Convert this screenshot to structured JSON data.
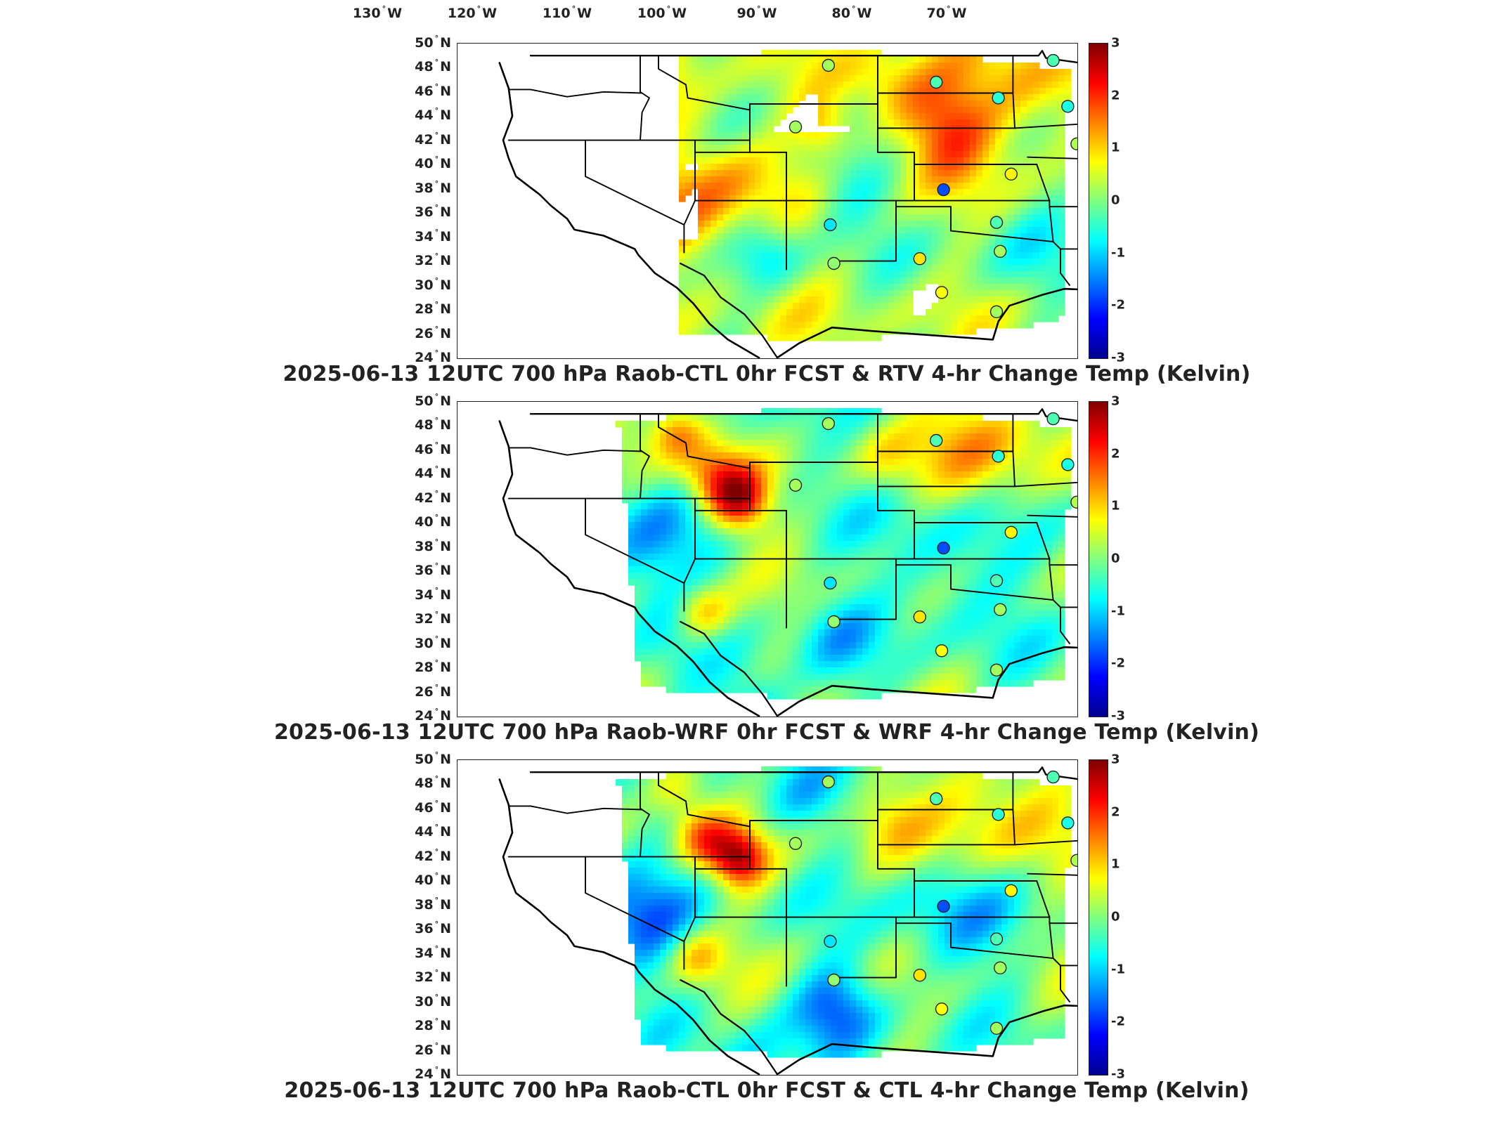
{
  "lon_labels": [
    {
      "deg": "130",
      "hemi": "W"
    },
    {
      "deg": "120",
      "hemi": "W"
    },
    {
      "deg": "110",
      "hemi": "W"
    },
    {
      "deg": "100",
      "hemi": "W"
    },
    {
      "deg": "90",
      "hemi": "W"
    },
    {
      "deg": "80",
      "hemi": "W"
    },
    {
      "deg": "70",
      "hemi": "W"
    }
  ],
  "lat_labels": [
    {
      "deg": "50",
      "hemi": "N"
    },
    {
      "deg": "48",
      "hemi": "N"
    },
    {
      "deg": "46",
      "hemi": "N"
    },
    {
      "deg": "44",
      "hemi": "N"
    },
    {
      "deg": "42",
      "hemi": "N"
    },
    {
      "deg": "40",
      "hemi": "N"
    },
    {
      "deg": "38",
      "hemi": "N"
    },
    {
      "deg": "36",
      "hemi": "N"
    },
    {
      "deg": "34",
      "hemi": "N"
    },
    {
      "deg": "32",
      "hemi": "N"
    },
    {
      "deg": "30",
      "hemi": "N"
    },
    {
      "deg": "28",
      "hemi": "N"
    },
    {
      "deg": "26",
      "hemi": "N"
    },
    {
      "deg": "24",
      "hemi": "N"
    }
  ],
  "colorbar": {
    "ticks": [
      "3",
      "2",
      "1",
      "0",
      "-1",
      "-2",
      "-3"
    ],
    "range": [
      -3,
      3
    ],
    "colormap": "jet",
    "colors": [
      "#00008f",
      "#0000ff",
      "#0080ff",
      "#00ffff",
      "#80ff80",
      "#ffff00",
      "#ff8000",
      "#ff0000",
      "#800000"
    ]
  },
  "panels": [
    {
      "title": "2025-06-13 12UTC 700 hPa Raob-CTL 0hr FCST & RTV 4-hr Change Temp (Kelvin)",
      "field": "rtv"
    },
    {
      "title": "2025-06-13 12UTC 700 hPa Raob-WRF 0hr FCST & WRF 4-hr Change Temp (Kelvin)",
      "field": "wrf"
    },
    {
      "title": "2025-06-13 12UTC 700 hPa Raob-CTL 0hr FCST & CTL 4-hr Change Temp (Kelvin)",
      "field": "ctl"
    }
  ],
  "raob_stations": [
    {
      "lon": -106.7,
      "lat": 48.2,
      "v": 0.2
    },
    {
      "lon": -100.8,
      "lat": 46.8,
      "v": -0.3
    },
    {
      "lon": -97.4,
      "lat": 45.5,
      "v": -0.5
    },
    {
      "lon": -94.4,
      "lat": 48.6,
      "v": -0.3
    },
    {
      "lon": -93.6,
      "lat": 44.8,
      "v": -0.6
    },
    {
      "lon": -89.3,
      "lat": 44.5,
      "v": 0.2
    },
    {
      "lon": -86.5,
      "lat": 44.9,
      "v": 1.0
    },
    {
      "lon": -84.8,
      "lat": 42.6,
      "v": -0.8
    },
    {
      "lon": -79.0,
      "lat": 43.0,
      "v": 0.6
    },
    {
      "lon": -73.0,
      "lat": 42.6,
      "v": 0.1
    },
    {
      "lon": -108.5,
      "lat": 43.1,
      "v": 0.2
    },
    {
      "lon": -100.4,
      "lat": 37.9,
      "v": -1.8
    },
    {
      "lon": -96.7,
      "lat": 39.2,
      "v": 0.8
    },
    {
      "lon": -93.1,
      "lat": 41.7,
      "v": 0.3
    },
    {
      "lon": -90.5,
      "lat": 40.4,
      "v": 0.3
    },
    {
      "lon": -85.0,
      "lat": 39.5,
      "v": -0.6
    },
    {
      "lon": -80.2,
      "lat": 40.5,
      "v": -0.8
    },
    {
      "lon": -92.3,
      "lat": 37.2,
      "v": 0.6
    },
    {
      "lon": -86.7,
      "lat": 36.2,
      "v": -0.4
    },
    {
      "lon": -80.4,
      "lat": 37.2,
      "v": -0.6
    },
    {
      "lon": -76.8,
      "lat": 39.0,
      "v": 0.3
    },
    {
      "lon": -106.6,
      "lat": 35.0,
      "v": -0.9
    },
    {
      "lon": -97.5,
      "lat": 35.2,
      "v": -0.3
    },
    {
      "lon": -101.7,
      "lat": 32.2,
      "v": 0.9
    },
    {
      "lon": -97.3,
      "lat": 32.8,
      "v": 0.2
    },
    {
      "lon": -92.2,
      "lat": 32.5,
      "v": 0.6
    },
    {
      "lon": -90.1,
      "lat": 32.3,
      "v": -0.4
    },
    {
      "lon": -86.7,
      "lat": 33.2,
      "v": 0.8
    },
    {
      "lon": -84.6,
      "lat": 33.4,
      "v": 0.7
    },
    {
      "lon": -81.1,
      "lat": 32.9,
      "v": 0.7
    },
    {
      "lon": -77.0,
      "lat": 34.9,
      "v": 0.5
    },
    {
      "lon": -106.4,
      "lat": 31.8,
      "v": 0.1
    },
    {
      "lon": -100.5,
      "lat": 29.4,
      "v": 0.7
    },
    {
      "lon": -97.5,
      "lat": 27.8,
      "v": 0.2
    },
    {
      "lon": -89.8,
      "lat": 30.3,
      "v": -0.6
    },
    {
      "lon": -84.3,
      "lat": 30.4,
      "v": 0.4
    },
    {
      "lon": -81.7,
      "lat": 28.2,
      "v": 0.7
    }
  ]
}
